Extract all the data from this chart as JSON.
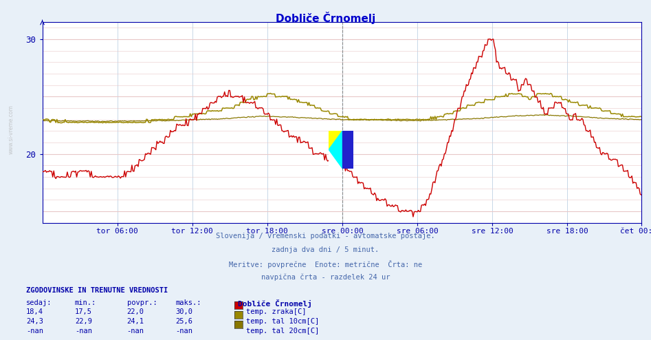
{
  "title": "Dobliče Črnomelj",
  "title_color": "#0000cc",
  "bg_color": "#e8f0f8",
  "plot_bg_color": "#ffffff",
  "grid_h_color": "#e8c8c8",
  "grid_v_color": "#c8d8e8",
  "axis_color": "#0000aa",
  "x_label_color": "#0000aa",
  "y_label_color": "#0000aa",
  "y_ticks": [
    20,
    30
  ],
  "y_min": 14.0,
  "y_max": 31.5,
  "x_tick_labels": [
    "tor 06:00",
    "tor 12:00",
    "tor 18:00",
    "sre 00:00",
    "sre 06:00",
    "sre 12:00",
    "sre 18:00",
    "čet 00:00"
  ],
  "line_colors": [
    "#cc0000",
    "#998800",
    "#887700"
  ],
  "legend_labels": [
    "temp. zraka[C]",
    "temp. tal 10cm[C]",
    "temp. tal 20cm[C]"
  ],
  "legend_colors": [
    "#cc0000",
    "#998800",
    "#887700"
  ],
  "subtitle_lines": [
    "Slovenija / vremenski podatki - avtomatske postaje.",
    "zadnja dva dni / 5 minut.",
    "Meritve: povprečne  Enote: metrične  Črta: ne",
    "navpična črta - razdelek 24 ur"
  ],
  "table_header": "ZGODOVINSKE IN TRENUTNE VREDNOSTI",
  "table_cols": [
    "sedaj:",
    "min.:",
    "povpr.:",
    "maks.:"
  ],
  "table_rows": [
    [
      "18,4",
      "17,5",
      "22,0",
      "30,0"
    ],
    [
      "24,3",
      "22,9",
      "24,1",
      "25,6"
    ],
    [
      "-nan",
      "-nan",
      "-nan",
      "-nan"
    ]
  ],
  "station_label": "Dobliče Črnomelj",
  "n_points": 576,
  "steps_per_6h": 72
}
